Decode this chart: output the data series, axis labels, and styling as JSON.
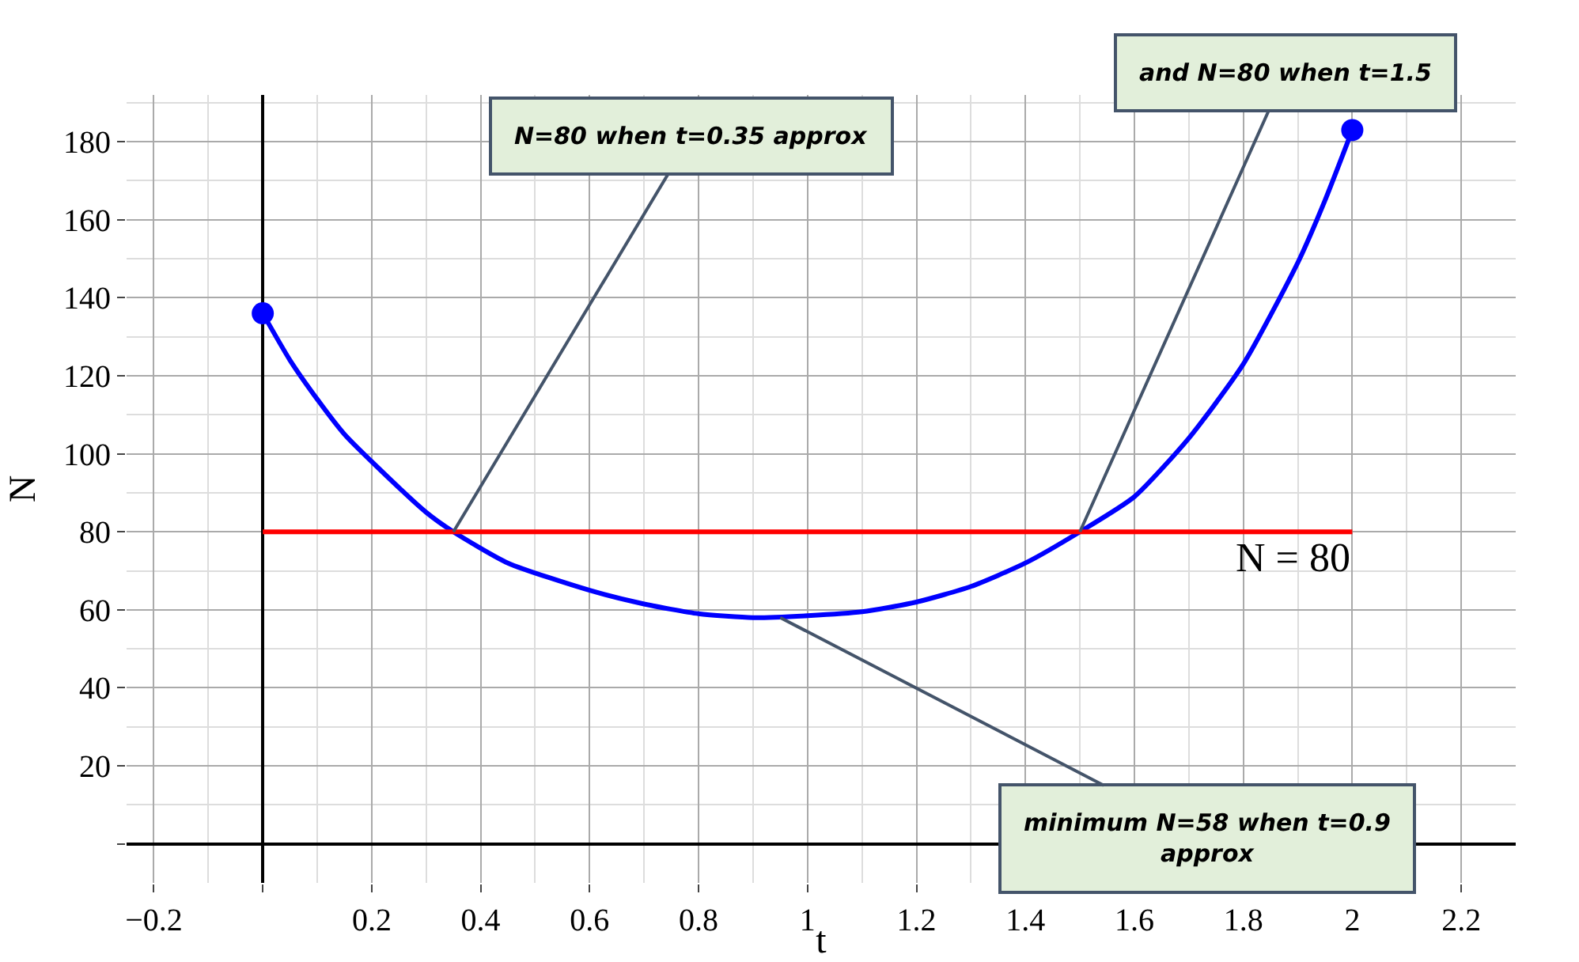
{
  "chart_data": {
    "type": "line",
    "xlabel": "t",
    "ylabel": "N",
    "xlim": [
      -0.25,
      2.3
    ],
    "ylim": [
      -10,
      192
    ],
    "xticks": [
      {
        "value": -0.2,
        "label": "−0.2"
      },
      {
        "value": 0,
        "label": null
      },
      0.2,
      0.4,
      0.6,
      0.8,
      1,
      1.2,
      1.4,
      1.6,
      1.8,
      2,
      2.2
    ],
    "yticks": [
      {
        "value": 0,
        "label": null
      },
      20,
      40,
      60,
      80,
      100,
      120,
      140,
      160,
      180
    ],
    "grid": true,
    "series": [
      {
        "color": "#0000ff",
        "marker": "none",
        "x": [
          0,
          0.05,
          0.1,
          0.15,
          0.2,
          0.3,
          0.35,
          0.45,
          0.6,
          0.7,
          0.8,
          0.9,
          1.0,
          1.1,
          1.2,
          1.3,
          1.4,
          1.5,
          1.6,
          1.7,
          1.8,
          1.9,
          1.95,
          2
        ],
        "values": [
          136,
          124,
          114,
          105,
          98,
          85,
          80,
          72,
          65,
          61.5,
          59,
          58,
          58.5,
          59.5,
          62,
          66,
          72,
          80,
          89,
          104,
          123,
          149,
          165,
          183
        ]
      },
      {
        "type": "scatter",
        "color": "#0000ff",
        "marker": "circle",
        "x": [
          0,
          2
        ],
        "values": [
          136,
          183
        ]
      }
    ],
    "ref_lines": [
      {
        "axis": "y",
        "value": 80,
        "label": "N = 80",
        "color": "#ff0000",
        "line_style": "solid"
      }
    ],
    "annotations": [
      {
        "text": "N=80 when t=0.35 approx",
        "x": 0.35,
        "y": 80
      },
      {
        "text": "and N=80 when t=1.5",
        "x": 1.5,
        "y": 80
      },
      {
        "text": "minimum N=58 when t=0.9 approx",
        "x": 0.95,
        "y": 58
      }
    ]
  }
}
